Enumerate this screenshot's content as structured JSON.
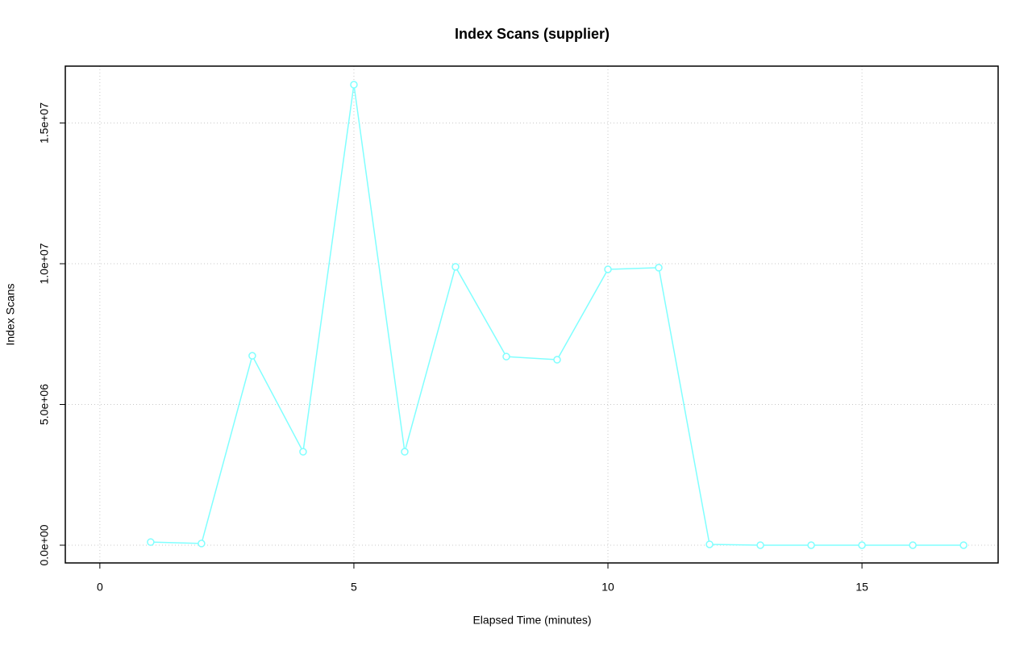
{
  "chart_data": {
    "type": "line",
    "title": "Index Scans (supplier)",
    "x_label": "Elapsed Time (minutes)",
    "y_label": "Index Scans",
    "x": [
      1,
      2,
      3,
      4,
      5,
      6,
      7,
      8,
      9,
      10,
      11,
      12,
      13,
      14,
      15,
      16,
      17
    ],
    "series": [
      {
        "name": "supplier",
        "color": "#80ffff",
        "values": [
          110000,
          60000,
          6730000,
          3320000,
          16360000,
          3320000,
          9890000,
          6700000,
          6590000,
          9800000,
          9860000,
          30000,
          0,
          0,
          0,
          0,
          0
        ]
      }
    ],
    "xlim": [
      -0.68,
      17.68
    ],
    "xticks": [
      0,
      5,
      10,
      15
    ],
    "ylim": [
      -630000,
      17020000
    ],
    "yticks": [
      {
        "value": 0,
        "label": "0.0e+00"
      },
      {
        "value": 5000000,
        "label": "5.0e+06"
      },
      {
        "value": 10000000,
        "label": "1.0e+07"
      },
      {
        "value": 15000000,
        "label": "1.5e+07"
      }
    ],
    "grid": true
  }
}
